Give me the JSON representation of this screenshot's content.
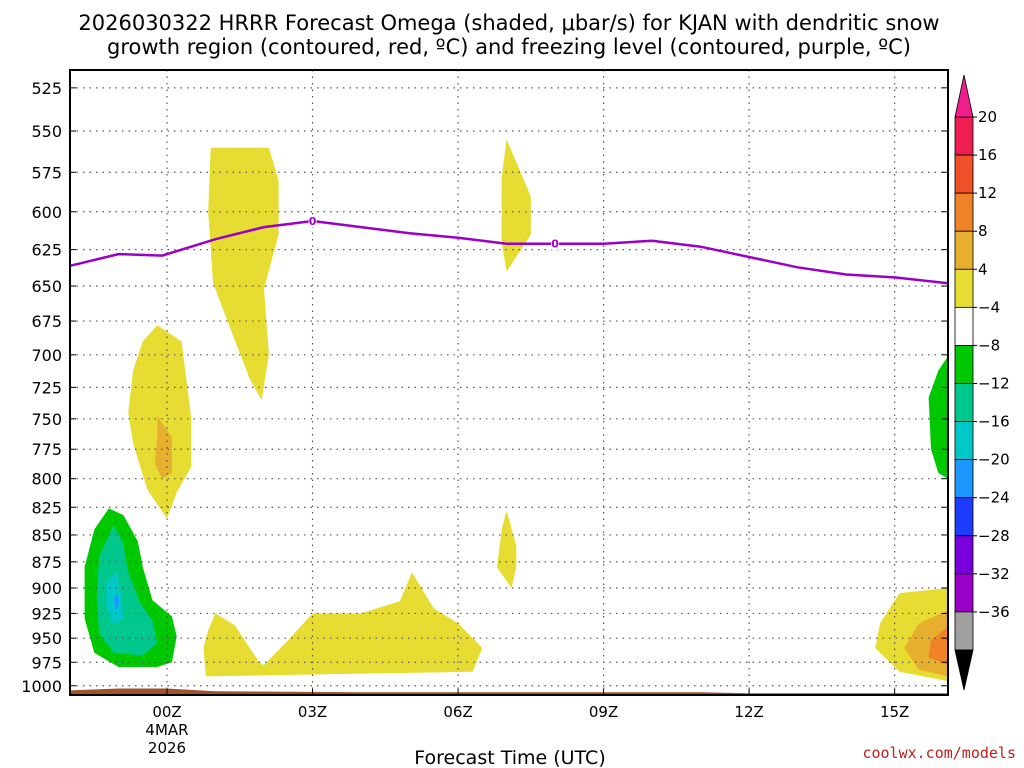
{
  "chart_data": {
    "type": "time-height contour",
    "title_line1": "2026030322 HRRR Forecast Omega (shaded, μbar/s) for KJAN with dendritic snow",
    "title_line2": "growth region (contoured, red, ºC) and freezing level (contoured, purple, ºC)",
    "xlabel": "Forecast Time (UTC)",
    "credit": "coolwx.com/models",
    "x_range_hours": [
      -2,
      16.1
    ],
    "y_range_mb": [
      515,
      1010
    ],
    "y_ticks": [
      "525",
      "550",
      "575",
      "600",
      "625",
      "650",
      "675",
      "700",
      "725",
      "750",
      "775",
      "800",
      "825",
      "850",
      "875",
      "900",
      "925",
      "950",
      "975",
      "1000"
    ],
    "x_ticks": [
      {
        "hour": 0,
        "label": "00Z",
        "sub1": "4MAR",
        "sub2": "2026"
      },
      {
        "hour": 3,
        "label": "03Z"
      },
      {
        "hour": 6,
        "label": "06Z"
      },
      {
        "hour": 9,
        "label": "09Z"
      },
      {
        "hour": 12,
        "label": "12Z"
      },
      {
        "hour": 15,
        "label": "15Z"
      }
    ],
    "freezing_level": {
      "label": "0",
      "label_hours": [
        3,
        8
      ],
      "points": [
        [
          -2,
          636
        ],
        [
          -1,
          628
        ],
        [
          -0.1,
          629
        ],
        [
          1,
          618
        ],
        [
          2,
          610
        ],
        [
          3,
          606
        ],
        [
          4,
          610
        ],
        [
          5,
          614
        ],
        [
          6,
          617
        ],
        [
          7,
          621
        ],
        [
          8,
          621
        ],
        [
          9,
          621
        ],
        [
          10,
          619
        ],
        [
          11,
          623
        ],
        [
          12,
          630
        ],
        [
          13,
          637
        ],
        [
          14,
          642
        ],
        [
          15,
          644
        ],
        [
          16.1,
          648
        ]
      ]
    },
    "omega_regions": [
      {
        "name": "upward-core-outer",
        "color": "#00c800",
        "points": [
          [
            -1.2,
            826
          ],
          [
            -0.9,
            832
          ],
          [
            -0.6,
            856
          ],
          [
            -0.5,
            880
          ],
          [
            -0.3,
            912
          ],
          [
            0.1,
            928
          ],
          [
            0.2,
            948
          ],
          [
            0.1,
            975
          ],
          [
            -0.2,
            980
          ],
          [
            -1.0,
            980
          ],
          [
            -1.5,
            965
          ],
          [
            -1.7,
            930
          ],
          [
            -1.7,
            880
          ],
          [
            -1.5,
            845
          ]
        ]
      },
      {
        "name": "upward-core-middle",
        "color": "#00c88c",
        "points": [
          [
            -1.1,
            841
          ],
          [
            -0.9,
            858
          ],
          [
            -0.8,
            885
          ],
          [
            -0.55,
            915
          ],
          [
            -0.3,
            932
          ],
          [
            -0.2,
            955
          ],
          [
            -0.5,
            968
          ],
          [
            -1.1,
            965
          ],
          [
            -1.4,
            945
          ],
          [
            -1.45,
            910
          ],
          [
            -1.4,
            870
          ]
        ]
      },
      {
        "name": "upward-core-inner",
        "color": "#00c8c8",
        "points": [
          [
            -1.05,
            885
          ],
          [
            -0.95,
            905
          ],
          [
            -0.9,
            930
          ],
          [
            -1.1,
            936
          ],
          [
            -1.25,
            920
          ],
          [
            -1.25,
            895
          ]
        ]
      },
      {
        "name": "upward-core-peak",
        "color": "#1e96ff",
        "points": [
          [
            -1.02,
            905
          ],
          [
            -0.98,
            915
          ],
          [
            -1.05,
            922
          ],
          [
            -1.1,
            912
          ]
        ]
      },
      {
        "name": "upward-right-edge",
        "color": "#00c800",
        "points": [
          [
            16.1,
            701
          ],
          [
            15.9,
            712
          ],
          [
            15.7,
            733
          ],
          [
            15.75,
            775
          ],
          [
            15.9,
            795
          ],
          [
            16.1,
            800
          ]
        ]
      },
      {
        "name": "downward-left-upper",
        "color": "#e6dc32",
        "points": [
          [
            -0.5,
            690
          ],
          [
            -0.2,
            678
          ],
          [
            0.3,
            690
          ],
          [
            0.5,
            750
          ],
          [
            0.5,
            790
          ],
          [
            0.2,
            812
          ],
          [
            0,
            835
          ],
          [
            -0.4,
            810
          ],
          [
            -0.7,
            770
          ],
          [
            -0.8,
            745
          ],
          [
            -0.7,
            712
          ]
        ]
      },
      {
        "name": "downward-left-upper-core",
        "color": "#e6af2d",
        "points": [
          [
            -0.2,
            748
          ],
          [
            0.1,
            765
          ],
          [
            0.1,
            795
          ],
          [
            -0.1,
            800
          ],
          [
            -0.25,
            787
          ],
          [
            -0.2,
            765
          ]
        ]
      },
      {
        "name": "downward-column-02z",
        "color": "#e6dc32",
        "points": [
          [
            0.9,
            560
          ],
          [
            2.1,
            560
          ],
          [
            2.3,
            580
          ],
          [
            2.3,
            615
          ],
          [
            2.0,
            652
          ],
          [
            2.1,
            700
          ],
          [
            1.95,
            735
          ],
          [
            1.7,
            718
          ],
          [
            1.3,
            680
          ],
          [
            0.95,
            648
          ],
          [
            0.85,
            600
          ]
        ]
      },
      {
        "name": "downward-column-07z",
        "color": "#e6dc32",
        "points": [
          [
            7.0,
            555
          ],
          [
            7.5,
            590
          ],
          [
            7.5,
            615
          ],
          [
            7.3,
            625
          ],
          [
            7.0,
            640
          ],
          [
            6.9,
            620
          ],
          [
            6.9,
            578
          ]
        ]
      },
      {
        "name": "downward-sliver-07z",
        "color": "#e6dc32",
        "points": [
          [
            7.0,
            828
          ],
          [
            7.2,
            860
          ],
          [
            7.2,
            880
          ],
          [
            7.1,
            900
          ],
          [
            6.8,
            880
          ],
          [
            6.9,
            845
          ]
        ]
      },
      {
        "name": "downward-lowlevel-band",
        "color": "#e6dc32",
        "points": [
          [
            0.85,
            942
          ],
          [
            1.0,
            925
          ],
          [
            1.4,
            937
          ],
          [
            1.9,
            975
          ],
          [
            2.0,
            978
          ],
          [
            2.5,
            952
          ],
          [
            3.0,
            925
          ],
          [
            4.0,
            925
          ],
          [
            4.8,
            913
          ],
          [
            5.05,
            885
          ],
          [
            5.5,
            920
          ],
          [
            6.0,
            935
          ],
          [
            6.5,
            960
          ],
          [
            6.3,
            985
          ],
          [
            0.8,
            990
          ],
          [
            0.75,
            960
          ]
        ]
      },
      {
        "name": "downward-right-low",
        "color": "#e6dc32",
        "points": [
          [
            16.1,
            900
          ],
          [
            15.1,
            905
          ],
          [
            14.7,
            935
          ],
          [
            14.6,
            960
          ],
          [
            15.1,
            985
          ],
          [
            15.6,
            990
          ],
          [
            16.1,
            995
          ]
        ]
      },
      {
        "name": "downward-right-low-8",
        "color": "#e6af2d",
        "points": [
          [
            16.1,
            922
          ],
          [
            15.5,
            935
          ],
          [
            15.2,
            960
          ],
          [
            15.5,
            983
          ],
          [
            16.1,
            990
          ]
        ]
      },
      {
        "name": "downward-right-low-12",
        "color": "#f08228",
        "points": [
          [
            16.1,
            938
          ],
          [
            15.75,
            952
          ],
          [
            15.7,
            970
          ],
          [
            16.1,
            978
          ]
        ]
      }
    ],
    "terrain_band": {
      "color": "#a0522d",
      "top_points": [
        [
          -2,
          1005
        ],
        [
          -1,
          1003
        ],
        [
          0,
          1003
        ],
        [
          1,
          1006
        ],
        [
          4,
          1007
        ],
        [
          11,
          1007
        ],
        [
          12,
          1008
        ],
        [
          16.1,
          1008
        ]
      ]
    },
    "colorbar": {
      "colors_top_to_bottom": [
        "#f01e50",
        "#f05028",
        "#f08228",
        "#e6af2d",
        "#e6dc32",
        "#ffffff",
        "#00c800",
        "#00c88c",
        "#00c8c8",
        "#1e96ff",
        "#1e3cff",
        "#7800dc",
        "#9a00c8",
        "#a0a0a0"
      ],
      "labels_top_to_bottom": [
        "20",
        "16",
        "12",
        "8",
        "4",
        "−4",
        "−8",
        "−12",
        "−16",
        "−20",
        "−24",
        "−28",
        "−32",
        "−36"
      ],
      "top_triangle_color": "#f01e8c",
      "bottom_triangle_color": "#000000"
    }
  }
}
